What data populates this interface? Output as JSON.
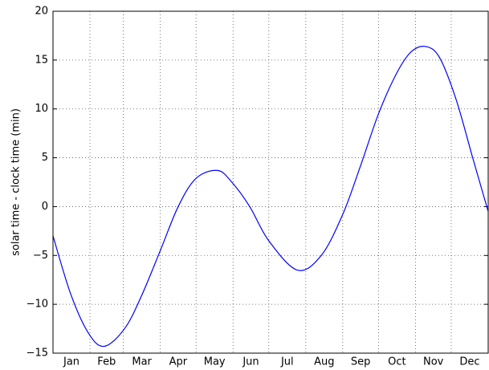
{
  "chart_data": {
    "type": "line",
    "y_label": "solar time - clock time (min)",
    "x": [
      0,
      15,
      30,
      43,
      60,
      74,
      90,
      105,
      120,
      138,
      150,
      165,
      181,
      205,
      225,
      243,
      258,
      273,
      288,
      300,
      312,
      324,
      338,
      352,
      365
    ],
    "series": [
      {
        "color": "#0000ff",
        "values": [
          -3,
          -9,
          -13,
          -14.3,
          -12.5,
          -9.2,
          -4.5,
          0,
          2.9,
          3.7,
          2.5,
          0,
          -3.5,
          -6.5,
          -5,
          -0.8,
          4.2,
          9.5,
          13.6,
          15.8,
          16.4,
          15.3,
          11,
          5,
          -0.5
        ]
      }
    ],
    "xlim": [
      0,
      365
    ],
    "xticks": [
      {
        "value": 15.5,
        "label": "Jan"
      },
      {
        "value": 45,
        "label": "Feb"
      },
      {
        "value": 74.5,
        "label": "Mar"
      },
      {
        "value": 105,
        "label": "Apr"
      },
      {
        "value": 135.5,
        "label": "May"
      },
      {
        "value": 166,
        "label": "Jun"
      },
      {
        "value": 196.5,
        "label": "Jul"
      },
      {
        "value": 227.5,
        "label": "Aug"
      },
      {
        "value": 258,
        "label": "Sep"
      },
      {
        "value": 288.5,
        "label": "Oct"
      },
      {
        "value": 319,
        "label": "Nov"
      },
      {
        "value": 349.5,
        "label": "Dec"
      }
    ],
    "xgrid": [
      31,
      59,
      90,
      120,
      151,
      181,
      212,
      243,
      273,
      304,
      334
    ],
    "ylim": [
      -15,
      20
    ],
    "yticks": [
      {
        "value": -15,
        "label": "−15"
      },
      {
        "value": -10,
        "label": "−10"
      },
      {
        "value": -5,
        "label": "−5"
      },
      0,
      5,
      10,
      15,
      20
    ],
    "grid": true
  }
}
